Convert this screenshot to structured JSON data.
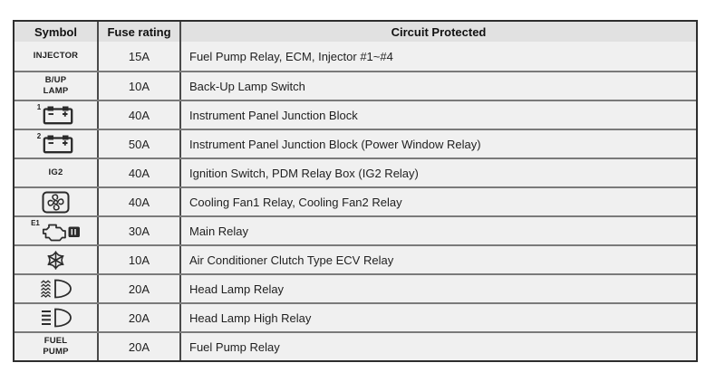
{
  "colors": {
    "header_bg": "#e1e1e1",
    "row_bg": "#f0f0f0",
    "border_outer": "#2e2e2e",
    "border_row": "#7a7a7a",
    "border_col": "#4a4a4a",
    "text": "#1f1f1f",
    "icon": "#2b2b2b"
  },
  "table": {
    "headers": [
      "Symbol",
      "Fuse rating",
      "Circuit Protected"
    ],
    "rows": [
      {
        "symbol": {
          "type": "text",
          "lines": [
            "INJECTOR"
          ]
        },
        "fuse_rating": "15A",
        "circuit_protected": "Fuel Pump Relay, ECM, Injector #1~#4"
      },
      {
        "symbol": {
          "type": "text",
          "lines": [
            "B/UP",
            "LAMP"
          ]
        },
        "fuse_rating": "10A",
        "circuit_protected": "Back-Up Lamp Switch"
      },
      {
        "symbol": {
          "type": "icon",
          "icon": "battery-icon",
          "sup": "1"
        },
        "fuse_rating": "40A",
        "circuit_protected": "Instrument Panel Junction Block"
      },
      {
        "symbol": {
          "type": "icon",
          "icon": "battery-icon",
          "sup": "2"
        },
        "fuse_rating": "50A",
        "circuit_protected": "Instrument Panel Junction Block (Power Window Relay)"
      },
      {
        "symbol": {
          "type": "text",
          "lines": [
            "IG2"
          ]
        },
        "fuse_rating": "40A",
        "circuit_protected": "Ignition Switch, PDM Relay Box (IG2 Relay)"
      },
      {
        "symbol": {
          "type": "icon",
          "icon": "cooling-fan-icon"
        },
        "fuse_rating": "40A",
        "circuit_protected": "Cooling Fan1 Relay, Cooling Fan2 Relay"
      },
      {
        "symbol": {
          "type": "icon",
          "icon": "engine-icon",
          "sup": "E1"
        },
        "fuse_rating": "30A",
        "circuit_protected": "Main Relay"
      },
      {
        "symbol": {
          "type": "icon",
          "icon": "snowflake-icon"
        },
        "fuse_rating": "10A",
        "circuit_protected": "Air Conditioner Clutch Type ECV Relay"
      },
      {
        "symbol": {
          "type": "icon",
          "icon": "headlamp-low-beam-icon"
        },
        "fuse_rating": "20A",
        "circuit_protected": "Head Lamp Relay"
      },
      {
        "symbol": {
          "type": "icon",
          "icon": "headlamp-high-beam-icon"
        },
        "fuse_rating": "20A",
        "circuit_protected": "Head Lamp High Relay"
      },
      {
        "symbol": {
          "type": "text",
          "lines": [
            "FUEL",
            "PUMP"
          ]
        },
        "fuse_rating": "20A",
        "circuit_protected": "Fuel Pump Relay"
      }
    ]
  }
}
